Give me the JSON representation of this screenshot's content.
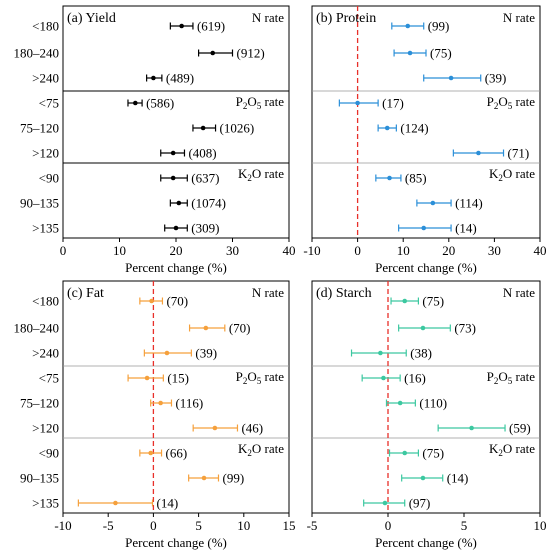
{
  "figure": {
    "row_labels": [
      "<180",
      "180–240",
      ">240",
      "<75",
      "75–120",
      ">120",
      "<90",
      "90–135",
      ">135"
    ],
    "group_labels": [
      "N rate",
      "P2O5 rate",
      "K2O rate"
    ],
    "xlabel": "Percent change (%)"
  },
  "chart_data": [
    {
      "type": "scatter",
      "title": "(a) Yield",
      "color": "#000000",
      "zero_line": false,
      "xlim": [
        0,
        40
      ],
      "xticks": [
        0,
        10,
        20,
        30,
        40
      ],
      "xlabel": "Percent change (%)",
      "categories": [
        "<180",
        "180–240",
        ">240",
        "<75",
        "75–120",
        ">120",
        "<90",
        "90–135",
        ">135"
      ],
      "groups": [
        "N rate",
        "P2O5 rate",
        "K2O rate"
      ],
      "values": [
        21.0,
        26.5,
        16.0,
        12.8,
        24.8,
        19.5,
        19.5,
        20.5,
        20.0
      ],
      "ci_low": [
        19.0,
        24.0,
        14.8,
        11.5,
        23.0,
        17.3,
        17.3,
        19.0,
        18.0
      ],
      "ci_high": [
        23.0,
        30.0,
        17.5,
        14.0,
        27.0,
        21.5,
        22.0,
        22.0,
        22.0
      ],
      "n": [
        "(619)",
        "(912)",
        "(489)",
        "(586)",
        "(1026)",
        "(408)",
        "(637)",
        "(1074)",
        "(309)"
      ]
    },
    {
      "type": "scatter",
      "title": "(b) Protein",
      "color": "#2b8fd8",
      "zero_line": true,
      "xlim": [
        -10,
        40
      ],
      "xticks": [
        -10,
        0,
        10,
        20,
        30,
        40
      ],
      "xlabel": "Percent change (%)",
      "categories": [
        "<180",
        "180–240",
        ">240",
        "<75",
        "75–120",
        ">120",
        "<90",
        "90–135",
        ">135"
      ],
      "groups": [
        "N rate",
        "P2O5 rate",
        "K2O rate"
      ],
      "values": [
        11.0,
        11.5,
        20.5,
        0.0,
        6.5,
        26.5,
        7.0,
        16.5,
        14.5
      ],
      "ci_low": [
        7.5,
        8.0,
        14.5,
        -4.0,
        4.5,
        21.0,
        4.0,
        13.0,
        9.0
      ],
      "ci_high": [
        14.5,
        15.0,
        27.0,
        4.5,
        8.5,
        32.0,
        9.5,
        20.5,
        20.5
      ],
      "n": [
        "(99)",
        "(75)",
        "(39)",
        "(17)",
        "(124)",
        "(71)",
        "(85)",
        "(114)",
        "(14)"
      ]
    },
    {
      "type": "scatter",
      "title": "(c) Fat",
      "color": "#f5a03c",
      "zero_line": true,
      "xlim": [
        -10,
        15
      ],
      "xticks": [
        -10,
        -5,
        0,
        5,
        10,
        15
      ],
      "xlabel": "Percent change (%)",
      "categories": [
        "<180",
        "180–240",
        ">240",
        "<75",
        "75–120",
        ">120",
        "<90",
        "90–135",
        ">135"
      ],
      "groups": [
        "N rate",
        "P2O5 rate",
        "K2O rate"
      ],
      "values": [
        -0.2,
        5.8,
        1.5,
        -0.7,
        0.8,
        6.8,
        -0.3,
        5.6,
        -4.2
      ],
      "ci_low": [
        -1.5,
        4.0,
        -1.0,
        -2.8,
        -0.3,
        4.4,
        -1.5,
        3.9,
        -8.3
      ],
      "ci_high": [
        1.0,
        7.9,
        4.2,
        1.1,
        2.0,
        9.3,
        0.9,
        7.2,
        -0.1
      ],
      "n": [
        "(70)",
        "(70)",
        "(39)",
        "(15)",
        "(116)",
        "(46)",
        "(66)",
        "(99)",
        "(14)"
      ]
    },
    {
      "type": "scatter",
      "title": "(d) Starch",
      "color": "#3cc8a0",
      "zero_line": true,
      "xlim": [
        -5,
        10
      ],
      "xticks": [
        -5,
        0,
        5,
        10
      ],
      "xlabel": "Percent change (%)",
      "categories": [
        "<180",
        "180–240",
        ">240",
        "<75",
        "75–120",
        ">120",
        "<90",
        "90–135",
        ">135"
      ],
      "groups": [
        "N rate",
        "P2O5 rate",
        "K2O rate"
      ],
      "values": [
        1.1,
        2.3,
        -0.5,
        -0.3,
        0.8,
        5.5,
        1.1,
        2.3,
        -0.2
      ],
      "ci_low": [
        0.2,
        0.7,
        -2.4,
        -1.7,
        -0.1,
        3.3,
        0.1,
        0.9,
        -1.6
      ],
      "ci_high": [
        2.0,
        4.1,
        1.2,
        0.8,
        1.8,
        7.7,
        2.0,
        3.6,
        1.1
      ],
      "n": [
        "(75)",
        "(73)",
        "(38)",
        "(16)",
        "(110)",
        "(59)",
        "(75)",
        "(14)",
        "(97)"
      ]
    }
  ]
}
